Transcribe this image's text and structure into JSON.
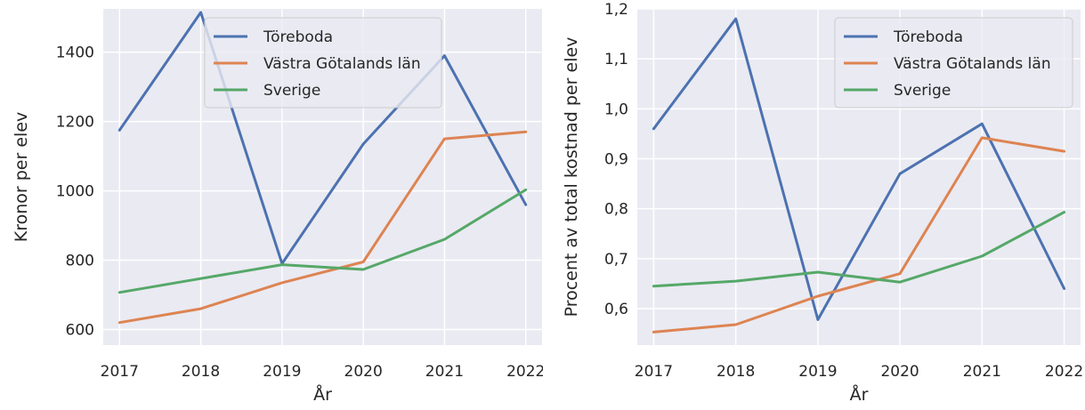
{
  "colors": {
    "background": "#eaeaf2",
    "grid": "#ffffff",
    "legend_border": "#cccccc",
    "series": [
      "#4c72b0",
      "#dd8452",
      "#55a868"
    ]
  },
  "chart_data": [
    {
      "type": "line",
      "x": [
        2017,
        2018,
        2019,
        2020,
        2021,
        2022
      ],
      "x_tick_labels": [
        "2017",
        "2018",
        "2019",
        "2020",
        "2021",
        "2022"
      ],
      "xlabel": "År",
      "ylabel": "Kronor per elev",
      "ylim": [
        555,
        1525
      ],
      "y_ticks": [
        600,
        800,
        1000,
        1200,
        1400
      ],
      "y_tick_labels": [
        "600",
        "800",
        "1000",
        "1200",
        "1400"
      ],
      "grid": true,
      "legend_position": "top-right",
      "series": [
        {
          "name": "Töreboda",
          "values": [
            1175,
            1515,
            790,
            1135,
            1390,
            960
          ]
        },
        {
          "name": "Västra Götalands län",
          "values": [
            620,
            660,
            735,
            795,
            1150,
            1170
          ]
        },
        {
          "name": "Sverige",
          "values": [
            707,
            747,
            787,
            773,
            860,
            1003
          ]
        }
      ]
    },
    {
      "type": "line",
      "x": [
        2017,
        2018,
        2019,
        2020,
        2021,
        2022
      ],
      "x_tick_labels": [
        "2017",
        "2018",
        "2019",
        "2020",
        "2021",
        "2022"
      ],
      "xlabel": "År",
      "ylabel": "Procent av total kostnad per elev",
      "ylim": [
        0.527,
        1.2
      ],
      "y_ticks": [
        0.6,
        0.7,
        0.8,
        0.9,
        1.0,
        1.1,
        1.2
      ],
      "y_tick_labels": [
        "0,6",
        "0,7",
        "0,8",
        "0,9",
        "1,0",
        "1,1",
        "1,2"
      ],
      "grid": true,
      "legend_position": "top-right",
      "series": [
        {
          "name": "Töreboda",
          "values": [
            0.96,
            1.18,
            0.578,
            0.87,
            0.97,
            0.64
          ]
        },
        {
          "name": "Västra Götalands län",
          "values": [
            0.553,
            0.568,
            0.625,
            0.67,
            0.942,
            0.915
          ]
        },
        {
          "name": "Sverige",
          "values": [
            0.645,
            0.655,
            0.673,
            0.653,
            0.705,
            0.793
          ]
        }
      ]
    }
  ]
}
